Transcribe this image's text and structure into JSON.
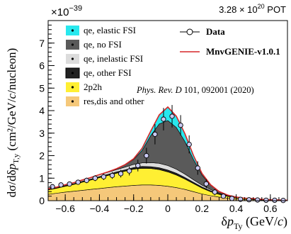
{
  "chart_data": {
    "type": "area",
    "title": "",
    "exponent_label": "×10",
    "exponent_power": "−39",
    "pot_label": "3.28 × 10",
    "pot_power": "20",
    "pot_suffix": " POT",
    "citation_journal": "Phys. Rev. D",
    "citation_rest": " 101, 092001 (2020)",
    "ylabel": "dσ/dδp_T,y (cm²/GeV/c/nucleon)",
    "ylabel_parts": {
      "main": "dσ/dδ",
      "p": "p",
      "sub": "T,y",
      "units": " (cm²/GeV/",
      "c": "c",
      "tail": "/nucleon)"
    },
    "xlabel": "δp_Ty (GeV/c)",
    "xlabel_parts": {
      "main": "δ",
      "p": "p",
      "sub": "Ty",
      "units": " (GeV/",
      "c": "c",
      "tail": ")"
    },
    "xlim": [
      -0.7,
      0.7
    ],
    "ylim": [
      0,
      8
    ],
    "x_ticks": [
      -0.6,
      -0.4,
      -0.2,
      0,
      0.2,
      0.4,
      0.6
    ],
    "x_tick_labels": [
      "−0.6",
      "−0.4",
      "−0.2",
      "0",
      "0.2",
      "0.4",
      "0.6"
    ],
    "y_ticks": [
      0,
      1,
      2,
      3,
      4,
      5,
      6,
      7
    ],
    "y_tick_labels": [
      "0",
      "1",
      "2",
      "3",
      "4",
      "5",
      "6",
      "7"
    ],
    "grid": false,
    "legend_placement": "top-left and top-right",
    "x": [
      -0.7,
      -0.65,
      -0.6,
      -0.55,
      -0.5,
      -0.45,
      -0.4,
      -0.35,
      -0.3,
      -0.25,
      -0.2,
      -0.15,
      -0.1,
      -0.05,
      0,
      0.05,
      0.1,
      0.15,
      0.2,
      0.25,
      0.3,
      0.35,
      0.4,
      0.45,
      0.5,
      0.55,
      0.6,
      0.65,
      0.7
    ],
    "stack": [
      {
        "name": "res,dis and other",
        "color": "#f5c87a",
        "values": [
          0.28,
          0.33,
          0.38,
          0.42,
          0.46,
          0.5,
          0.54,
          0.58,
          0.62,
          0.65,
          0.68,
          0.7,
          0.7,
          0.68,
          0.64,
          0.58,
          0.5,
          0.4,
          0.3,
          0.22,
          0.16,
          0.11,
          0.08,
          0.05,
          0.04,
          0.03,
          0.02,
          0.02,
          0.01
        ]
      },
      {
        "name": "2p2h",
        "color": "#ffef33",
        "values": [
          0.2,
          0.22,
          0.26,
          0.3,
          0.36,
          0.42,
          0.48,
          0.54,
          0.6,
          0.66,
          0.72,
          0.74,
          0.73,
          0.7,
          0.64,
          0.56,
          0.46,
          0.36,
          0.26,
          0.18,
          0.12,
          0.08,
          0.05,
          0.04,
          0.03,
          0.02,
          0.01,
          0.01,
          0.01
        ]
      },
      {
        "name": "qe, other FSI",
        "color": "#222222",
        "values": [
          0.02,
          0.02,
          0.03,
          0.03,
          0.04,
          0.04,
          0.05,
          0.05,
          0.06,
          0.06,
          0.07,
          0.08,
          0.08,
          0.08,
          0.08,
          0.08,
          0.07,
          0.06,
          0.05,
          0.04,
          0.03,
          0.02,
          0.02,
          0.01,
          0.01,
          0.01,
          0.01,
          0.0,
          0.0
        ]
      },
      {
        "name": "qe, inelastic FSI",
        "color": "#dcdcdc",
        "values": [
          0.03,
          0.03,
          0.04,
          0.05,
          0.06,
          0.07,
          0.08,
          0.09,
          0.1,
          0.12,
          0.14,
          0.16,
          0.18,
          0.2,
          0.2,
          0.18,
          0.15,
          0.11,
          0.08,
          0.05,
          0.03,
          0.02,
          0.01,
          0.01,
          0.01,
          0.0,
          0.0,
          0.0,
          0.0
        ]
      },
      {
        "name": "qe, no FSI",
        "color": "#5a5a5a",
        "values": [
          0.0,
          0.0,
          0.0,
          0.0,
          0.0,
          0.0,
          0.01,
          0.02,
          0.04,
          0.1,
          0.22,
          0.55,
          1.2,
          1.75,
          2.0,
          1.85,
          1.45,
          0.9,
          0.45,
          0.2,
          0.07,
          0.02,
          0.0,
          0.0,
          0.0,
          0.0,
          0.0,
          0.0,
          0.0
        ]
      },
      {
        "name": "qe, elastic FSI",
        "color": "#28e8ee",
        "values": [
          0.0,
          0.0,
          0.0,
          0.0,
          0.0,
          0.0,
          0.0,
          0.0,
          0.0,
          0.01,
          0.03,
          0.1,
          0.2,
          0.4,
          0.6,
          0.5,
          0.35,
          0.18,
          0.07,
          0.02,
          0.0,
          0.0,
          0.0,
          0.0,
          0.0,
          0.0,
          0.0,
          0.0,
          0.0
        ]
      }
    ],
    "model_line": {
      "name": "MnvGENIE-v1.0.1",
      "color": "#d62728"
    },
    "data": {
      "name": "Data",
      "points": [
        {
          "x": -0.675,
          "y": 0.62,
          "err": 0.09
        },
        {
          "x": -0.625,
          "y": 0.7,
          "err": 0.1
        },
        {
          "x": -0.575,
          "y": 0.74,
          "err": 0.1
        },
        {
          "x": -0.525,
          "y": 0.82,
          "err": 0.11
        },
        {
          "x": -0.475,
          "y": 0.9,
          "err": 0.12
        },
        {
          "x": -0.425,
          "y": 1.0,
          "err": 0.13
        },
        {
          "x": -0.375,
          "y": 1.06,
          "err": 0.14
        },
        {
          "x": -0.325,
          "y": 1.12,
          "err": 0.15
        },
        {
          "x": -0.275,
          "y": 1.2,
          "err": 0.17
        },
        {
          "x": -0.225,
          "y": 1.32,
          "err": 0.2
        },
        {
          "x": -0.175,
          "y": 1.56,
          "err": 0.26
        },
        {
          "x": -0.125,
          "y": 2.0,
          "err": 0.35
        },
        {
          "x": -0.075,
          "y": 2.95,
          "err": 0.45
        },
        {
          "x": -0.025,
          "y": 3.62,
          "err": 0.5
        },
        {
          "x": 0.025,
          "y": 3.75,
          "err": 0.5
        },
        {
          "x": 0.075,
          "y": 3.35,
          "err": 0.45
        },
        {
          "x": 0.125,
          "y": 2.5,
          "err": 0.4
        },
        {
          "x": 0.175,
          "y": 1.45,
          "err": 0.3
        },
        {
          "x": 0.225,
          "y": 0.75,
          "err": 0.2
        },
        {
          "x": 0.275,
          "y": 0.38,
          "err": 0.14
        },
        {
          "x": 0.325,
          "y": 0.2,
          "err": 0.1
        },
        {
          "x": 0.375,
          "y": 0.1,
          "err": 0.07
        },
        {
          "x": 0.425,
          "y": 0.06,
          "err": 0.05
        },
        {
          "x": 0.475,
          "y": 0.04,
          "err": 0.04
        },
        {
          "x": 0.525,
          "y": 0.03,
          "err": 0.03
        },
        {
          "x": 0.575,
          "y": 0.02,
          "err": 0.03
        },
        {
          "x": 0.625,
          "y": 0.02,
          "err": 0.02
        },
        {
          "x": 0.675,
          "y": 0.01,
          "err": 0.02
        }
      ]
    }
  }
}
